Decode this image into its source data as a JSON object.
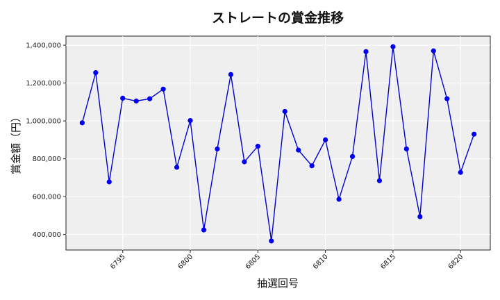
{
  "chart_data": {
    "type": "line",
    "title": "ストレートの賞金推移",
    "xlabel": "抽選回号",
    "ylabel": "賞金額（円）",
    "x": [
      6792,
      6793,
      6794,
      6795,
      6796,
      6797,
      6798,
      6799,
      6800,
      6801,
      6802,
      6803,
      6804,
      6805,
      6806,
      6807,
      6808,
      6809,
      6810,
      6811,
      6812,
      6813,
      6814,
      6815,
      6816,
      6817,
      6818,
      6819,
      6820,
      6821
    ],
    "y": [
      990000,
      1255000,
      678000,
      1120000,
      1105000,
      1117000,
      1168000,
      755000,
      1002000,
      424000,
      852000,
      1245000,
      784000,
      866000,
      366000,
      1050000,
      846000,
      763000,
      900000,
      586000,
      812000,
      1366000,
      684000,
      1392000,
      852000,
      494000,
      1370000,
      1117000,
      728000,
      930000
    ],
    "xlim": [
      6790.8,
      6822.2
    ],
    "ylim": [
      318000,
      1448000
    ],
    "xticks": [
      6795,
      6800,
      6805,
      6810,
      6815,
      6820
    ],
    "yticks": [
      400000,
      600000,
      800000,
      1000000,
      1200000,
      1400000
    ],
    "ytick_labels": [
      "400,000",
      "600,000",
      "800,000",
      "1,000,000",
      "1,200,000",
      "1,400,000"
    ],
    "grid": true,
    "line_color": "#0000cc",
    "marker_color": "#0000ee",
    "plot_background": "#efefef"
  }
}
